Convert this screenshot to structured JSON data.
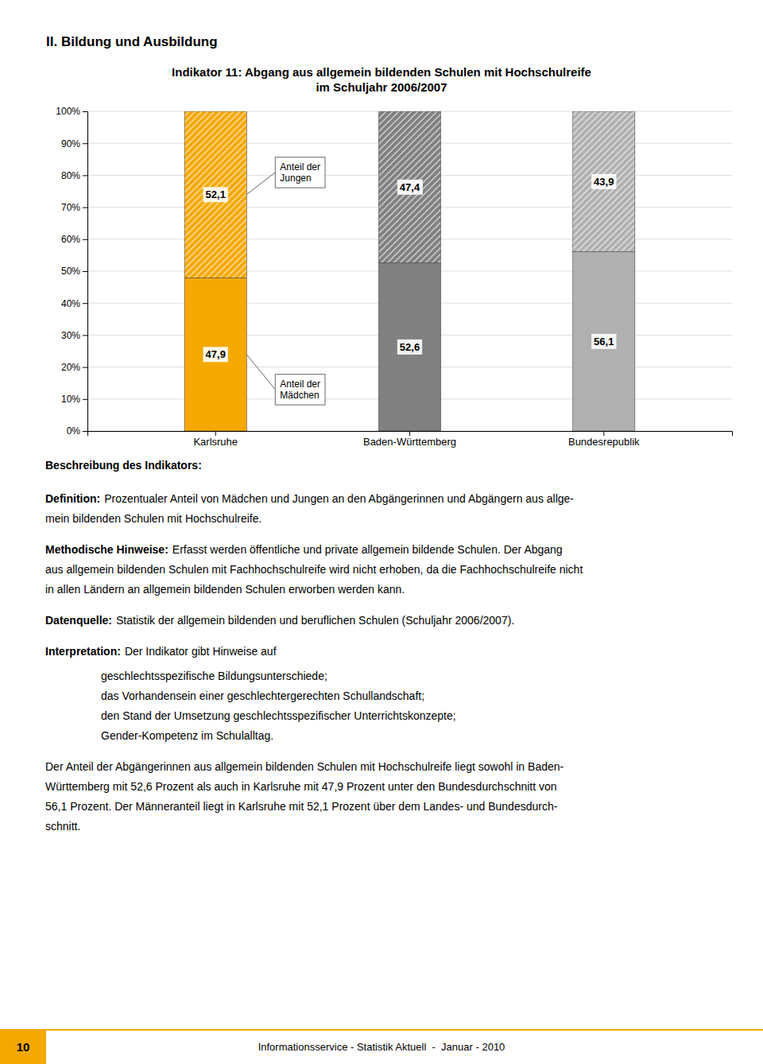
{
  "page_title": "II. Bildung und Ausbildung",
  "page_text": {
    "heading": "Beschreibung des Indikators:",
    "sections": [
      {
        "label": "Definition:",
        "lines": [
          "Prozentualer Anteil von Mädchen und Jungen an den Abgängerinnen und Abgängern aus allge-",
          "mein bildenden Schulen mit Hochschulreife."
        ]
      },
      {
        "label": "Methodische Hinweise:",
        "lines": [
          "Erfasst werden öffentliche und private allgemein bildende Schulen. Der Abgang",
          "aus allgemein bildenden Schulen mit Fachhochschulreife wird nicht erhoben, da die Fachhochschulreife nicht",
          "in allen Ländern an allgemein bildenden Schulen erworben werden kann."
        ]
      },
      {
        "label": "Datenquelle:",
        "lines": [
          "Statistik der allgemein bildenden und beruflichen Schulen (Schuljahr 2006/2007)."
        ]
      },
      {
        "label": "Interpretation:",
        "lines": [
          "Der Indikator gibt Hinweise auf"
        ],
        "bullets": [
          "geschlechtsspezifische Bildungsunterschiede;",
          "das Vorhandensein einer geschlechtergerechten Schullandschaft;",
          "den Stand der Umsetzung geschlechtsspezifischer Unterrichtskonzepte;",
          "Gender-Kompetenz im Schulalltag."
        ]
      }
    ],
    "closing": [
      "Der Anteil der Abgängerinnen aus allgemein bildenden Schulen mit Hochschulreife liegt sowohl in Baden-",
      "Württemberg mit 52,6 Prozent als auch in Karlsruhe mit 47,9 Prozent unter den Bundesdurchschnitt von",
      "56,1 Prozent. Der Männeranteil liegt in Karlsruhe mit 52,1 Prozent über dem Landes- und Bundesdurch-",
      "schnitt."
    ]
  },
  "footer": {
    "page": "10",
    "text": "Informationsservice - Statistik Aktuell  -  Januar - 2010",
    "color": "#F5A800"
  },
  "chart_data": {
    "type": "bar",
    "stacked": true,
    "title": "Indikator 11: Abgang aus allgemein bildenden Schulen mit Hochschulreife\nim Schuljahr 2006/2007",
    "categories": [
      "Karlsruhe",
      "Baden-Württemberg",
      "Bundesrepublik"
    ],
    "series": [
      {
        "name": "Anteil der\nMädchen",
        "values": [
          47.9,
          52.6,
          56.1
        ],
        "value_labels": [
          "47,9",
          "52,6",
          "56,1"
        ],
        "colors": [
          "#F5A800",
          "#808080",
          "#B0B0B0"
        ]
      },
      {
        "name": "Anteil der\nJungen",
        "values": [
          52.1,
          47.4,
          43.9
        ],
        "value_labels": [
          "52,1",
          "47,4",
          "43,9"
        ],
        "colors": [
          "#F5A800",
          "#808080",
          "#B0B0B0"
        ]
      }
    ],
    "data_labels": true,
    "ylim": [
      0,
      100
    ],
    "yticks": [
      {
        "value": 0,
        "label": "0%"
      },
      {
        "value": 10,
        "label": "10%"
      },
      {
        "value": 20,
        "label": "20%"
      },
      {
        "value": 30,
        "label": "30%"
      },
      {
        "value": 40,
        "label": "40%"
      },
      {
        "value": 50,
        "label": "50%"
      },
      {
        "value": 60,
        "label": "60%"
      },
      {
        "value": 70,
        "label": "70%"
      },
      {
        "value": 80,
        "label": "80%"
      },
      {
        "value": 90,
        "label": "90%"
      },
      {
        "value": 100,
        "label": "100%"
      }
    ],
    "grid": true
  }
}
